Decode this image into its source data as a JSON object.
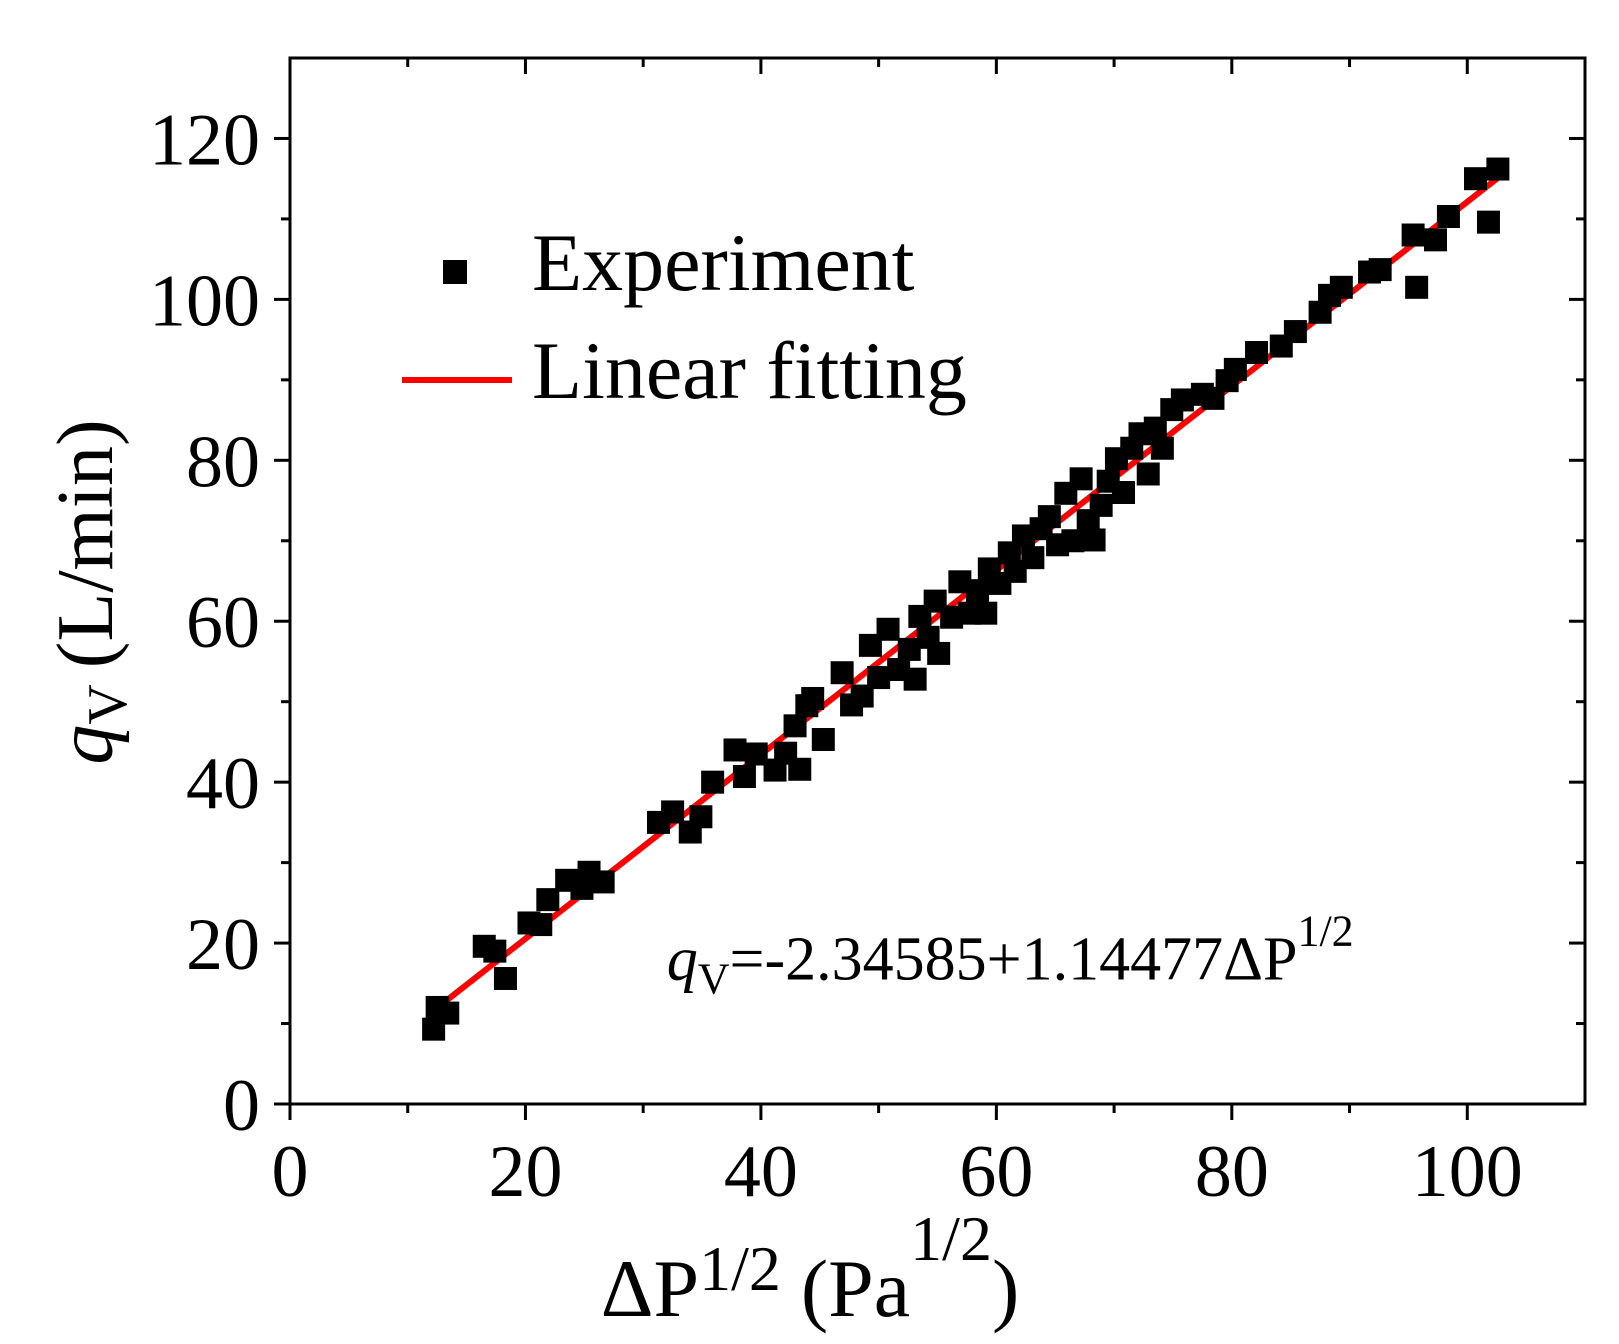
{
  "chart_data": {
    "type": "scatter",
    "xlabel_main": "ΔP",
    "xlabel_sup": "1/2",
    "xlabel_unit": "(Pa",
    "xlabel_unit_sup": "1/2",
    "xlabel_close": ")",
    "ylabel_var": "q",
    "ylabel_sub": "V",
    "ylabel_unit": "(L/min)",
    "xlim": [
      0,
      110
    ],
    "ylim": [
      0,
      130
    ],
    "xticks": [
      0,
      20,
      40,
      60,
      80,
      100
    ],
    "yticks": [
      0,
      20,
      40,
      60,
      80,
      100,
      120
    ],
    "xtick_labels": [
      "0",
      "20",
      "40",
      "60",
      "80",
      "100"
    ],
    "ytick_labels": [
      "0",
      "20",
      "40",
      "60",
      "80",
      "100",
      "120"
    ],
    "grid": false,
    "legend_position": "top-left",
    "series": [
      {
        "name": "Experiment",
        "kind": "scatter",
        "color": "#000000",
        "points": [
          [
            12.2,
            9.3
          ],
          [
            12.5,
            12.0
          ],
          [
            13.4,
            11.3
          ],
          [
            16.5,
            19.6
          ],
          [
            17.4,
            19.0
          ],
          [
            18.3,
            15.6
          ],
          [
            20.3,
            22.5
          ],
          [
            21.3,
            22.3
          ],
          [
            21.9,
            25.4
          ],
          [
            23.5,
            27.8
          ],
          [
            24.8,
            26.8
          ],
          [
            25.4,
            28.8
          ],
          [
            26.6,
            27.6
          ],
          [
            31.3,
            35.0
          ],
          [
            32.5,
            36.3
          ],
          [
            34.0,
            33.8
          ],
          [
            34.9,
            35.7
          ],
          [
            35.9,
            40.0
          ],
          [
            37.8,
            44.0
          ],
          [
            38.6,
            40.7
          ],
          [
            39.6,
            43.5
          ],
          [
            41.2,
            41.5
          ],
          [
            42.1,
            43.6
          ],
          [
            42.9,
            47.0
          ],
          [
            43.3,
            41.6
          ],
          [
            43.9,
            49.5
          ],
          [
            44.4,
            50.4
          ],
          [
            45.3,
            45.3
          ],
          [
            46.9,
            53.6
          ],
          [
            47.7,
            49.6
          ],
          [
            48.6,
            50.7
          ],
          [
            49.3,
            57.0
          ],
          [
            50.0,
            53.0
          ],
          [
            50.8,
            59.0
          ],
          [
            51.7,
            54.0
          ],
          [
            52.6,
            56.5
          ],
          [
            53.1,
            52.8
          ],
          [
            53.5,
            60.6
          ],
          [
            54.2,
            58.0
          ],
          [
            54.8,
            62.5
          ],
          [
            55.1,
            56.0
          ],
          [
            56.2,
            60.5
          ],
          [
            56.9,
            64.9
          ],
          [
            57.7,
            61.0
          ],
          [
            58.4,
            63.8
          ],
          [
            59.1,
            61.0
          ],
          [
            59.4,
            66.5
          ],
          [
            60.3,
            64.7
          ],
          [
            61.1,
            68.5
          ],
          [
            61.6,
            66.2
          ],
          [
            62.3,
            70.6
          ],
          [
            63.1,
            67.9
          ],
          [
            63.8,
            71.5
          ],
          [
            64.5,
            73.0
          ],
          [
            65.2,
            69.5
          ],
          [
            65.9,
            75.9
          ],
          [
            66.5,
            70.0
          ],
          [
            67.2,
            77.7
          ],
          [
            67.8,
            72.5
          ],
          [
            68.3,
            70.1
          ],
          [
            68.9,
            74.4
          ],
          [
            69.5,
            77.4
          ],
          [
            70.2,
            80.2
          ],
          [
            70.8,
            76.0
          ],
          [
            71.5,
            81.5
          ],
          [
            72.2,
            83.3
          ],
          [
            72.9,
            78.3
          ],
          [
            73.5,
            84.0
          ],
          [
            74.1,
            81.5
          ],
          [
            74.9,
            86.3
          ],
          [
            75.8,
            87.5
          ],
          [
            77.5,
            88.2
          ],
          [
            78.4,
            87.7
          ],
          [
            79.6,
            89.9
          ],
          [
            80.3,
            91.3
          ],
          [
            82.1,
            93.4
          ],
          [
            84.2,
            94.2
          ],
          [
            85.4,
            96.0
          ],
          [
            87.5,
            98.4
          ],
          [
            88.3,
            100.5
          ],
          [
            89.3,
            101.5
          ],
          [
            91.7,
            103.4
          ],
          [
            92.6,
            103.7
          ],
          [
            95.4,
            108.0
          ],
          [
            95.7,
            101.5
          ],
          [
            97.3,
            107.4
          ],
          [
            98.4,
            110.3
          ],
          [
            100.7,
            115.0
          ],
          [
            101.8,
            109.6
          ],
          [
            102.6,
            116.2
          ]
        ]
      },
      {
        "name": "Linear fitting",
        "kind": "line",
        "color": "#ff0000",
        "intercept": -2.34585,
        "slope": 1.14477,
        "x_range": [
          12.2,
          102.6
        ]
      }
    ],
    "annotation": {
      "var": "q",
      "sub": "V",
      "body": "=-2.34585+1.14477ΔP",
      "sup": "1/2",
      "anchor_data": [
        32,
        15.5
      ]
    }
  }
}
